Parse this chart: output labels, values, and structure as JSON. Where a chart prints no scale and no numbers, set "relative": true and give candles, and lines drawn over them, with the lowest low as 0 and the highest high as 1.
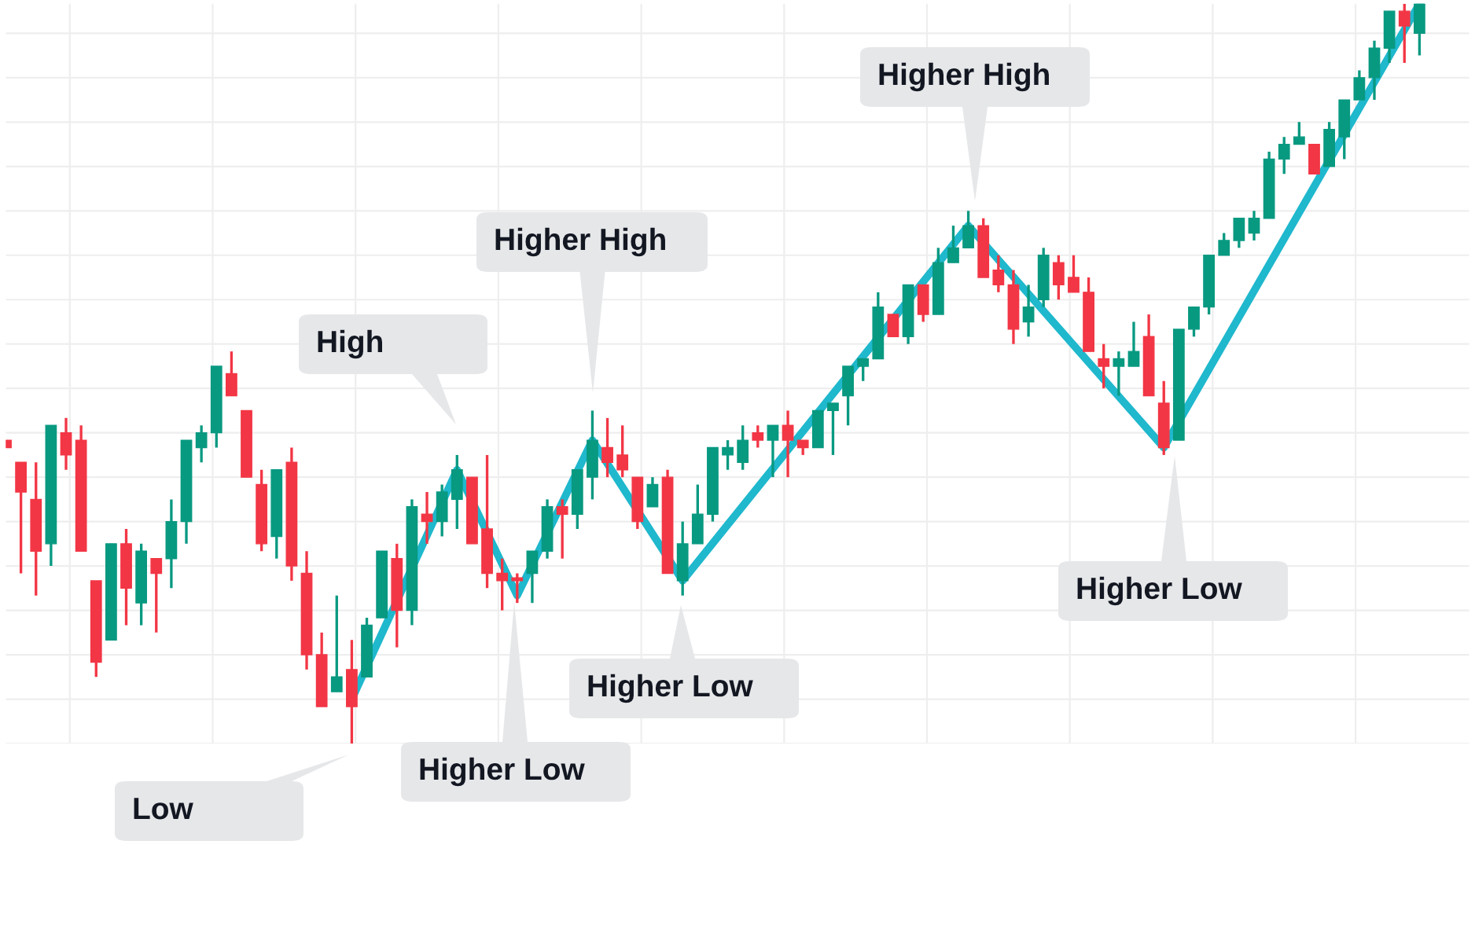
{
  "chart_data": {
    "type": "candlestick",
    "relative": true,
    "grid": true,
    "categories": [
      null,
      null,
      null,
      null,
      null,
      null,
      null,
      null,
      null,
      null,
      null,
      null,
      null,
      null,
      null,
      null,
      null,
      null,
      null,
      null,
      null,
      null,
      null,
      null,
      null,
      null,
      null,
      null,
      null,
      null,
      null,
      null,
      null,
      null,
      null,
      null,
      null,
      null,
      null,
      null,
      null,
      null,
      null,
      null,
      null,
      null,
      null,
      null,
      null,
      null,
      null,
      null,
      null,
      null,
      null,
      null,
      null,
      null,
      null,
      null,
      null,
      null,
      null,
      null,
      null,
      null,
      null,
      null,
      null,
      null,
      null,
      null,
      null,
      null,
      null,
      null,
      null,
      null,
      null,
      null,
      null,
      null,
      null,
      null,
      null,
      null,
      null,
      null,
      null,
      null,
      null,
      null,
      null,
      null,
      null
    ],
    "ohlc": [
      [
        0.41,
        0.41,
        0.4,
        0.4
      ],
      [
        0.38,
        0.38,
        0.23,
        0.34
      ],
      [
        0.33,
        0.38,
        0.2,
        0.26
      ],
      [
        0.27,
        0.43,
        0.24,
        0.43
      ],
      [
        0.42,
        0.44,
        0.37,
        0.39
      ],
      [
        0.41,
        0.43,
        0.26,
        0.26
      ],
      [
        0.22,
        0.22,
        0.09,
        0.11
      ],
      [
        0.14,
        0.27,
        0.14,
        0.27
      ],
      [
        0.27,
        0.29,
        0.16,
        0.21
      ],
      [
        0.19,
        0.27,
        0.16,
        0.26
      ],
      [
        0.25,
        0.25,
        0.15,
        0.23
      ],
      [
        0.25,
        0.33,
        0.21,
        0.3
      ],
      [
        0.3,
        0.41,
        0.27,
        0.41
      ],
      [
        0.4,
        0.43,
        0.38,
        0.42
      ],
      [
        0.42,
        0.51,
        0.4,
        0.51
      ],
      [
        0.5,
        0.53,
        0.47,
        0.47
      ],
      [
        0.45,
        0.45,
        0.36,
        0.36
      ],
      [
        0.35,
        0.37,
        0.26,
        0.27
      ],
      [
        0.28,
        0.37,
        0.25,
        0.37
      ],
      [
        0.38,
        0.4,
        0.22,
        0.24
      ],
      [
        0.23,
        0.26,
        0.1,
        0.12
      ],
      [
        0.12,
        0.15,
        0.05,
        0.05
      ],
      [
        0.07,
        0.2,
        0.07,
        0.09
      ],
      [
        0.1,
        0.14,
        0.0,
        0.05
      ],
      [
        0.09,
        0.17,
        0.09,
        0.16
      ],
      [
        0.17,
        0.26,
        0.17,
        0.26
      ],
      [
        0.25,
        0.27,
        0.13,
        0.18
      ],
      [
        0.18,
        0.33,
        0.16,
        0.32
      ],
      [
        0.31,
        0.34,
        0.27,
        0.3
      ],
      [
        0.3,
        0.35,
        0.28,
        0.34
      ],
      [
        0.33,
        0.39,
        0.29,
        0.37
      ],
      [
        0.36,
        0.36,
        0.27,
        0.27
      ],
      [
        0.29,
        0.39,
        0.21,
        0.23
      ],
      [
        0.23,
        0.25,
        0.18,
        0.22
      ],
      [
        0.22,
        0.23,
        0.19,
        0.22
      ],
      [
        0.23,
        0.26,
        0.19,
        0.26
      ],
      [
        0.26,
        0.33,
        0.25,
        0.32
      ],
      [
        0.32,
        0.33,
        0.25,
        0.31
      ],
      [
        0.31,
        0.37,
        0.29,
        0.37
      ],
      [
        0.36,
        0.45,
        0.33,
        0.41
      ],
      [
        0.4,
        0.44,
        0.36,
        0.38
      ],
      [
        0.39,
        0.43,
        0.36,
        0.37
      ],
      [
        0.36,
        0.36,
        0.29,
        0.3
      ],
      [
        0.32,
        0.36,
        0.32,
        0.35
      ],
      [
        0.36,
        0.37,
        0.23,
        0.23
      ],
      [
        0.22,
        0.3,
        0.2,
        0.27
      ],
      [
        0.27,
        0.35,
        0.27,
        0.31
      ],
      [
        0.31,
        0.4,
        0.3,
        0.4
      ],
      [
        0.39,
        0.41,
        0.37,
        0.4
      ],
      [
        0.38,
        0.43,
        0.37,
        0.41
      ],
      [
        0.42,
        0.43,
        0.4,
        0.41
      ],
      [
        0.41,
        0.43,
        0.36,
        0.43
      ],
      [
        0.43,
        0.45,
        0.36,
        0.41
      ],
      [
        0.41,
        0.41,
        0.39,
        0.4
      ],
      [
        0.4,
        0.45,
        0.4,
        0.45
      ],
      [
        0.45,
        0.46,
        0.39,
        0.46
      ],
      [
        0.47,
        0.51,
        0.43,
        0.51
      ],
      [
        0.51,
        0.52,
        0.49,
        0.52
      ],
      [
        0.52,
        0.61,
        0.52,
        0.59
      ],
      [
        0.58,
        0.58,
        0.55,
        0.55
      ],
      [
        0.55,
        0.62,
        0.54,
        0.62
      ],
      [
        0.62,
        0.62,
        0.57,
        0.58
      ],
      [
        0.58,
        0.67,
        0.58,
        0.65
      ],
      [
        0.65,
        0.7,
        0.65,
        0.67
      ],
      [
        0.67,
        0.72,
        0.67,
        0.7
      ],
      [
        0.7,
        0.71,
        0.63,
        0.63
      ],
      [
        0.64,
        0.66,
        0.61,
        0.62
      ],
      [
        0.62,
        0.64,
        0.54,
        0.56
      ],
      [
        0.57,
        0.62,
        0.55,
        0.59
      ],
      [
        0.6,
        0.67,
        0.59,
        0.66
      ],
      [
        0.65,
        0.66,
        0.6,
        0.62
      ],
      [
        0.63,
        0.66,
        0.61,
        0.61
      ],
      [
        0.61,
        0.63,
        0.53,
        0.53
      ],
      [
        0.52,
        0.54,
        0.48,
        0.51
      ],
      [
        0.51,
        0.53,
        0.47,
        0.52
      ],
      [
        0.51,
        0.57,
        0.51,
        0.53
      ],
      [
        0.55,
        0.58,
        0.47,
        0.47
      ],
      [
        0.46,
        0.49,
        0.39,
        0.4
      ],
      [
        0.41,
        0.56,
        0.41,
        0.56
      ],
      [
        0.56,
        0.59,
        0.55,
        0.59
      ],
      [
        0.59,
        0.66,
        0.58,
        0.66
      ],
      [
        0.66,
        0.69,
        0.66,
        0.68
      ],
      [
        0.68,
        0.71,
        0.67,
        0.71
      ],
      [
        0.69,
        0.72,
        0.68,
        0.71
      ],
      [
        0.71,
        0.8,
        0.71,
        0.79
      ],
      [
        0.79,
        0.82,
        0.77,
        0.81
      ],
      [
        0.81,
        0.84,
        0.81,
        0.82
      ],
      [
        0.81,
        0.81,
        0.77,
        0.77
      ],
      [
        0.78,
        0.84,
        0.78,
        0.83
      ],
      [
        0.82,
        0.87,
        0.79,
        0.87
      ],
      [
        0.87,
        0.91,
        0.87,
        0.9
      ],
      [
        0.9,
        0.95,
        0.87,
        0.94
      ],
      [
        0.94,
        0.99,
        0.92,
        0.99
      ],
      [
        0.99,
        1.0,
        0.92,
        0.97
      ],
      [
        0.96,
        1.0,
        0.93,
        1.0
      ]
    ],
    "colors": [
      "#f23645",
      "#f23645",
      "#f23645",
      "#089981",
      "#f23645",
      "#f23645",
      "#f23645",
      "#089981",
      "#f23645",
      "#089981",
      "#f23645",
      "#089981",
      "#089981",
      "#089981",
      "#089981",
      "#f23645",
      "#f23645",
      "#f23645",
      "#089981",
      "#f23645",
      "#f23645",
      "#f23645",
      "#089981",
      "#f23645",
      "#089981",
      "#089981",
      "#f23645",
      "#089981",
      "#f23645",
      "#089981",
      "#089981",
      "#f23645",
      "#f23645",
      "#f23645",
      "#f23645",
      "#089981",
      "#089981",
      "#f23645",
      "#089981",
      "#089981",
      "#f23645",
      "#f23645",
      "#f23645",
      "#089981",
      "#f23645",
      "#089981",
      "#089981",
      "#089981",
      "#089981",
      "#089981",
      "#f23645",
      "#089981",
      "#f23645",
      "#f23645",
      "#089981",
      "#089981",
      "#089981",
      "#089981",
      "#089981",
      "#f23645",
      "#089981",
      "#f23645",
      "#089981",
      "#089981",
      "#089981",
      "#f23645",
      "#f23645",
      "#f23645",
      "#089981",
      "#089981",
      "#f23645",
      "#f23645",
      "#f23645",
      "#f23645",
      "#089981",
      "#089981",
      "#f23645",
      "#f23645",
      "#089981",
      "#089981",
      "#089981",
      "#089981",
      "#089981",
      "#089981",
      "#089981",
      "#089981",
      "#089981",
      "#f23645",
      "#089981",
      "#089981",
      "#089981",
      "#089981",
      "#089981",
      "#f23645",
      "#089981"
    ],
    "series": [
      {
        "type": "line",
        "color": "#1fb8cd",
        "values": [
          null,
          null,
          null,
          null,
          null,
          null,
          null,
          null,
          null,
          null,
          null,
          null,
          null,
          null,
          null,
          null,
          null,
          null,
          null,
          null,
          null,
          null,
          null,
          0.06,
          null,
          null,
          null,
          null,
          null,
          null,
          0.37,
          null,
          null,
          null,
          0.2,
          null,
          null,
          null,
          null,
          0.41,
          null,
          null,
          null,
          null,
          null,
          0.22,
          null,
          null,
          null,
          null,
          null,
          null,
          null,
          null,
          null,
          null,
          null,
          null,
          null,
          null,
          null,
          null,
          null,
          null,
          0.7,
          null,
          null,
          null,
          null,
          null,
          null,
          null,
          null,
          null,
          null,
          null,
          null,
          0.4,
          null,
          null,
          null,
          null,
          null,
          null,
          null,
          null,
          null,
          null,
          null,
          null,
          null,
          null,
          null,
          null,
          1.0
        ]
      }
    ],
    "annotations": [
      "Low",
      "High",
      "Higher High",
      "Higher Low",
      "Higher Low",
      "Higher High",
      "Higher Low"
    ]
  }
}
